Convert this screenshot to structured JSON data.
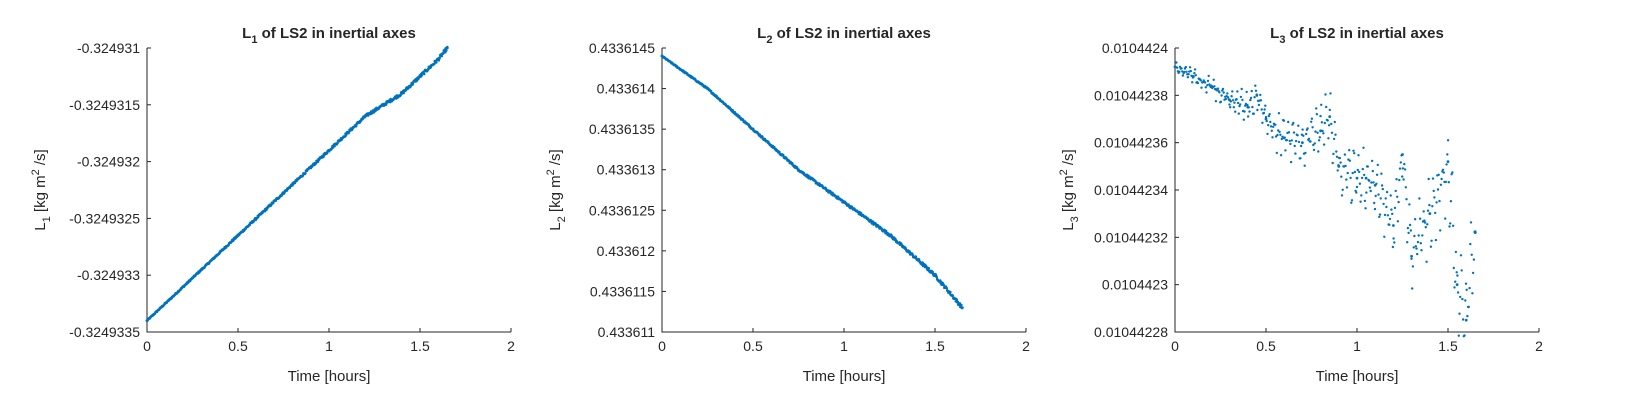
{
  "chart_data": [
    {
      "type": "scatter",
      "title": {
        "sym": "L",
        "sub": "1",
        "rest": " of LS2 in inertial axes"
      },
      "xlabel": "Time [hours]",
      "ylabel": {
        "sym": "L",
        "sub": "1",
        "unit_pre": " [kg m",
        "sup": "2",
        "unit_post": " /s]"
      },
      "xlim": [
        0,
        2
      ],
      "ylim": [
        -0.3249335,
        -0.324931
      ],
      "xticks": [
        "0",
        "0.5",
        "1",
        "1.5",
        "2"
      ],
      "yticks": [
        "-0.3249335",
        "-0.324933",
        "-0.3249325",
        "-0.324932",
        "-0.3249315",
        "-0.324931"
      ],
      "yticks_num": [
        -0.3249335,
        -0.324933,
        -0.3249325,
        -0.324932,
        -0.3249315,
        -0.324931
      ],
      "marker_color": "#0072BD",
      "series": [
        {
          "x": [
            0,
            0.2,
            0.4,
            0.6,
            0.8,
            1.0,
            1.2,
            1.4,
            1.6,
            1.65
          ],
          "values": [
            -0.3249334,
            -0.3249331,
            -0.3249328,
            -0.3249325,
            -0.3249322,
            -0.3249319,
            -0.3249316,
            -0.3249314,
            -0.3249311,
            -0.324931
          ]
        }
      ]
    },
    {
      "type": "scatter",
      "title": {
        "sym": "L",
        "sub": "2",
        "rest": " of LS2 in inertial axes"
      },
      "xlabel": "Time [hours]",
      "ylabel": {
        "sym": "L",
        "sub": "2",
        "unit_pre": " [kg m",
        "sup": "2",
        "unit_post": " /s]"
      },
      "xlim": [
        0,
        2
      ],
      "ylim": [
        0.433611,
        0.4336145
      ],
      "xticks": [
        "0",
        "0.5",
        "1",
        "1.5",
        "2"
      ],
      "yticks": [
        "0.433611",
        "0.4336115",
        "0.433612",
        "0.4336125",
        "0.433613",
        "0.4336135",
        "0.433614",
        "0.4336145"
      ],
      "yticks_num": [
        0.433611,
        0.4336115,
        0.433612,
        0.4336125,
        0.433613,
        0.4336135,
        0.433614,
        0.4336145
      ],
      "marker_color": "#0072BD",
      "series": [
        {
          "x": [
            0,
            0.25,
            0.5,
            0.75,
            1.0,
            1.25,
            1.5,
            1.65
          ],
          "values": [
            0.4336144,
            0.433614,
            0.4336135,
            0.433613,
            0.4336126,
            0.4336122,
            0.4336117,
            0.4336113
          ]
        }
      ]
    },
    {
      "type": "scatter",
      "title": {
        "sym": "L",
        "sub": "3",
        "rest": " of LS2 in inertial axes"
      },
      "xlabel": "Time [hours]",
      "ylabel": {
        "sym": "L",
        "sub": "3",
        "unit_pre": " [kg m",
        "sup": "2",
        "unit_post": " /s]"
      },
      "xlim": [
        0,
        2
      ],
      "ylim": [
        0.01044228,
        0.0104424
      ],
      "xticks": [
        "0",
        "0.5",
        "1",
        "1.5",
        "2"
      ],
      "yticks": [
        "0.01044228",
        "0.0104423",
        "0.01044232",
        "0.01044234",
        "0.01044236",
        "0.01044238",
        "0.0104424"
      ],
      "yticks_num": [
        0.01044228,
        0.0104423,
        0.01044232,
        0.01044234,
        0.01044236,
        0.01044238,
        0.0104424
      ],
      "marker_color": "#0072BD",
      "series": [
        {
          "x": [
            0,
            0.1,
            0.2,
            0.3,
            0.4,
            0.45,
            0.5,
            0.6,
            0.7,
            0.8,
            0.85,
            0.9,
            1.0,
            1.05,
            1.1,
            1.2,
            1.25,
            1.3,
            1.4,
            1.5,
            1.55,
            1.6,
            1.65
          ],
          "values": [
            0.010442392,
            0.010442388,
            0.010442384,
            0.010442378,
            0.010442375,
            0.01044238,
            0.01044237,
            0.010442362,
            0.01044236,
            0.010442365,
            0.010442371,
            0.01044235,
            0.010442345,
            0.010442345,
            0.010442342,
            0.010442325,
            0.010442355,
            0.010442312,
            0.01044233,
            0.010442352,
            0.0104423,
            0.010442285,
            0.010442322
          ]
        }
      ]
    }
  ]
}
